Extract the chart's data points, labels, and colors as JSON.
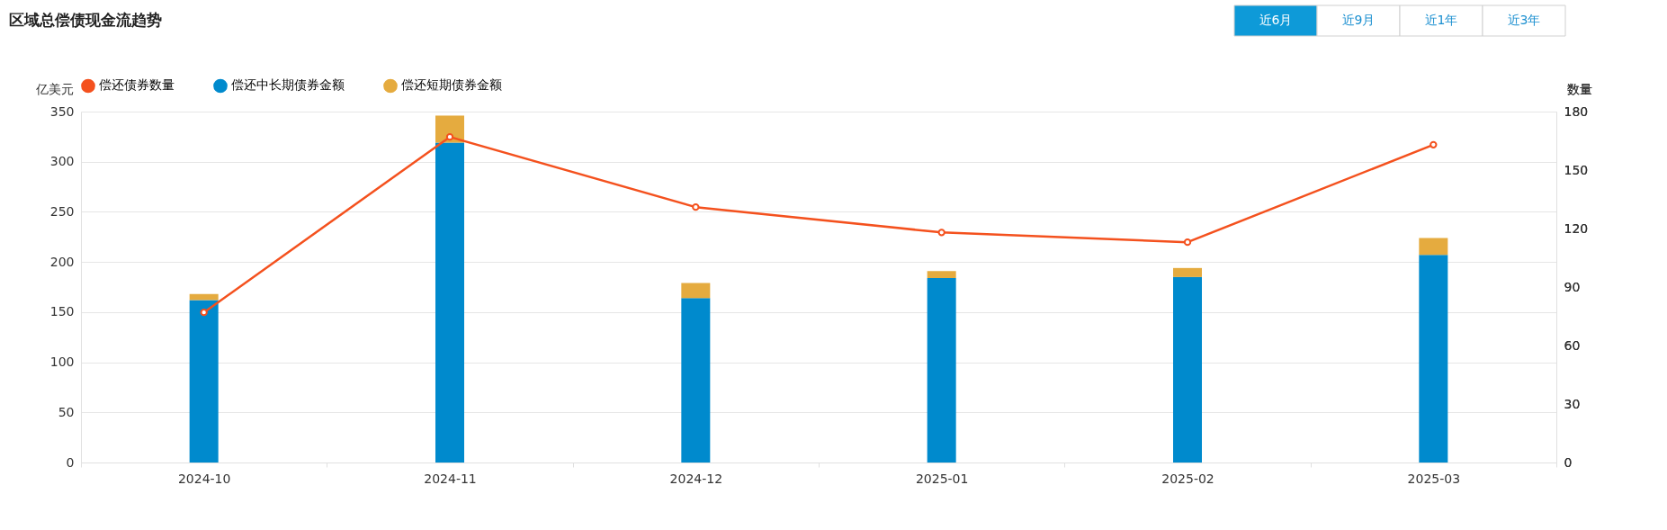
{
  "chart_data": {
    "type": "bar",
    "title": "区域总偿债现金流趋势",
    "categories": [
      "2024-10",
      "2024-11",
      "2024-12",
      "2025-01",
      "2025-02",
      "2025-03"
    ],
    "series": [
      {
        "name": "偿还债券数量",
        "type": "line",
        "axis": "y2",
        "color": "#f4511e",
        "values": [
          77,
          167,
          131,
          118,
          113,
          163
        ]
      },
      {
        "name": "偿还中长期债券金额",
        "color": "#008acd",
        "values": [
          162,
          319,
          164,
          184,
          185,
          207
        ]
      },
      {
        "name": "偿还短期债券金额",
        "color": "#e5ab3f",
        "values": [
          6,
          27,
          15,
          7,
          9,
          17
        ]
      }
    ],
    "stacked": true,
    "ylabel": "亿美元",
    "y2label": "数量",
    "ylim": [
      0,
      350
    ],
    "yticks": [
      0,
      50,
      100,
      150,
      200,
      250,
      300,
      350
    ],
    "y2lim": [
      0,
      180
    ],
    "y2ticks": [
      0,
      30,
      60,
      90,
      120,
      150,
      180
    ],
    "grid": "y",
    "legend": "top",
    "marker": "circle",
    "annotations": [
      "近6月",
      "近9月",
      "近1年",
      "近3年"
    ]
  }
}
